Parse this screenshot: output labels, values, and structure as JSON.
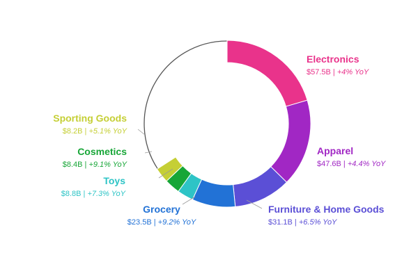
{
  "chart_data": {
    "type": "pie",
    "style": "donut",
    "title": "",
    "total_label": "",
    "slices": [
      {
        "name": "Electronics",
        "value": 57.5,
        "value_label": "$57.5B",
        "yoy": "+4% YoY",
        "color": "#e9338b"
      },
      {
        "name": "Apparel",
        "value": 47.6,
        "value_label": "$47.6B",
        "yoy": "+4.4% YoY",
        "color": "#a127c4"
      },
      {
        "name": "Furniture & Home Goods",
        "value": 31.1,
        "value_label": "$31.1B",
        "yoy": "+6.5% YoY",
        "color": "#5b4fd6"
      },
      {
        "name": "Grocery",
        "value": 23.5,
        "value_label": "$23.5B",
        "yoy": "+9.2% YoY",
        "color": "#2272d6"
      },
      {
        "name": "Toys",
        "value": 8.8,
        "value_label": "$8.8B",
        "yoy": "+7.3% YoY",
        "color": "#2ec4c6"
      },
      {
        "name": "Cosmetics",
        "value": 8.4,
        "value_label": "$8.4B",
        "yoy": "+9.1% YoY",
        "color": "#17a637"
      },
      {
        "name": "Sporting Goods",
        "value": 8.2,
        "value_label": "$8.2B",
        "yoy": "+5.1% YoY",
        "color": "#c5cf35"
      }
    ],
    "remainder_outline_color": "#555555"
  }
}
